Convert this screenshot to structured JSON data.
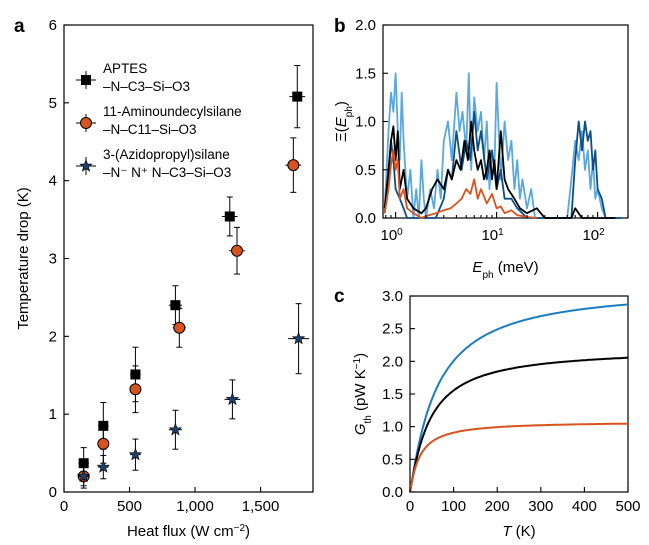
{
  "colors": {
    "black": "#000000",
    "orange": "#d9531e",
    "blue": "#1c7dc2",
    "navy": "#1f3f6b",
    "lightblue": "#5aa8e0",
    "darkblue": "#0b4f86"
  },
  "chart_data": [
    {
      "panel": "a",
      "type": "scatter",
      "xlabel": "Heat flux (W cm−2)",
      "xlabel_main": "Heat flux (W cm",
      "xlabel_sup": "−2",
      "xlabel_end": ")",
      "ylabel": "Temperature drop (K)",
      "xlim": [
        0,
        1900
      ],
      "ylim": [
        0,
        6
      ],
      "xticks": [
        0,
        500,
        1000,
        1500
      ],
      "xtick_labels": [
        "0",
        "500",
        "1,000",
        "1,500"
      ],
      "yticks": [
        0,
        1,
        2,
        3,
        4,
        5,
        6
      ],
      "ytick_labels": [
        "0",
        "1",
        "2",
        "3",
        "4",
        "5",
        "6"
      ],
      "legend_position": "top-left",
      "series": [
        {
          "name": "APTES –N–C3–Si–O3",
          "legend_line1": "APTES",
          "legend_line2": "–N–C3–Si–O3",
          "marker": "square",
          "color": "#000000",
          "x": [
            150,
            300,
            545,
            850,
            1265,
            1780
          ],
          "y": [
            0.37,
            0.85,
            1.51,
            2.4,
            3.54,
            5.08
          ],
          "yerr": [
            0.2,
            0.3,
            0.35,
            0.25,
            0.25,
            0.4
          ],
          "xerr": [
            40,
            40,
            40,
            50,
            60,
            60
          ]
        },
        {
          "name": "11-Aminoundecylsilane –N–C11–Si–O3",
          "legend_line1": "11-Aminoundecylsilane",
          "legend_line2": "–N–C11–Si–O3",
          "marker": "circle",
          "color": "#d9531e",
          "x": [
            150,
            300,
            545,
            880,
            1320,
            1750
          ],
          "y": [
            0.2,
            0.62,
            1.32,
            2.11,
            3.1,
            4.2
          ],
          "yerr": [
            0.15,
            0.25,
            0.3,
            0.25,
            0.3,
            0.35
          ],
          "xerr": [
            40,
            40,
            40,
            50,
            60,
            60
          ]
        },
        {
          "name": "3-(Azidopropyl)silane –N–N+N–C3–Si–O3",
          "legend_line1": "3-(Azidopropyl)silane",
          "legend_line2": "–N⁻ N⁺ N–C3–Si–O3",
          "marker": "star",
          "color": "#1f3f6b",
          "x": [
            150,
            300,
            545,
            850,
            1285,
            1790
          ],
          "y": [
            0.2,
            0.32,
            0.48,
            0.8,
            1.19,
            1.97
          ],
          "yerr": [
            0.12,
            0.15,
            0.2,
            0.25,
            0.25,
            0.45
          ],
          "xerr": [
            40,
            40,
            40,
            50,
            60,
            80
          ]
        }
      ]
    },
    {
      "panel": "b",
      "type": "line",
      "xscale": "log",
      "xlabel": "Eph (meV)",
      "ylabel": "Ξ(Eph)",
      "xlim": [
        0.75,
        200
      ],
      "ylim": [
        0,
        2.0
      ],
      "xtick_labels": [
        "10⁰",
        "10¹",
        "10²"
      ],
      "ytick_labels": [
        "0.0",
        "0.5",
        "1.0",
        "1.5",
        "2.0"
      ],
      "yticks": [
        0,
        0.5,
        1.0,
        1.5,
        2.0
      ],
      "series": [
        {
          "color": "#5aa8e0",
          "x": [
            0.78,
            0.85,
            0.9,
            0.95,
            1.0,
            1.05,
            1.1,
            1.15,
            1.2,
            1.3,
            1.4,
            1.5,
            1.6,
            1.7,
            1.8,
            1.9,
            2.0,
            2.2,
            2.4,
            2.6,
            2.8,
            3.0,
            3.3,
            3.6,
            4.0,
            4.3,
            4.6,
            5.0,
            5.3,
            5.6,
            6.0,
            6.5,
            7.0,
            7.5,
            8.0,
            8.5,
            9.0,
            9.5,
            10,
            11,
            12,
            13,
            14,
            15,
            16,
            17,
            18,
            20,
            22,
            24,
            26,
            30,
            40,
            50,
            55,
            60,
            65,
            70,
            75,
            80,
            85,
            90,
            95,
            100,
            110,
            120,
            130,
            150,
            170
          ],
          "y": [
            0.1,
            0.9,
            1.3,
            1.1,
            1.5,
            0.9,
            0.6,
            1.3,
            0.8,
            0.2,
            0.5,
            0.0,
            0.3,
            0.0,
            0.6,
            0.2,
            0.0,
            0.3,
            0.1,
            0.5,
            0.2,
            0.8,
            1.0,
            0.6,
            1.3,
            0.9,
            1.1,
            0.7,
            1.5,
            0.5,
            1.25,
            0.9,
            1.1,
            0.6,
            1.0,
            0.3,
            0.7,
            0.5,
            1.4,
            0.4,
            1.0,
            0.6,
            0.8,
            0.3,
            0.6,
            0.2,
            0.4,
            0.1,
            0.3,
            0.0,
            0.0,
            0.0,
            0.0,
            0.0,
            0.4,
            0.8,
            0.6,
            0.9,
            0.5,
            0.7,
            0.3,
            0.6,
            0.2,
            0.3,
            0.1,
            0.0,
            0.0,
            0.0,
            0.0
          ]
        },
        {
          "color": "#0b4f86",
          "x": [
            0.78,
            0.85,
            0.9,
            0.95,
            1.0,
            1.1,
            1.2,
            1.3,
            1.5,
            2.0,
            2.5,
            3.0,
            3.3,
            3.6,
            4.0,
            4.5,
            5.0,
            5.5,
            6.0,
            6.5,
            7.0,
            8.0,
            9.0,
            10,
            11,
            12,
            14,
            16,
            18,
            20,
            25,
            40,
            50,
            55,
            60,
            65,
            70,
            75,
            80,
            85,
            90,
            95,
            100,
            110,
            120,
            150,
            170
          ],
          "y": [
            0.05,
            0.4,
            0.8,
            0.6,
            0.3,
            0.2,
            0.1,
            0.0,
            0.0,
            0.0,
            0.0,
            0.2,
            0.5,
            0.4,
            0.9,
            0.5,
            0.8,
            0.6,
            1.1,
            0.7,
            0.9,
            0.4,
            0.7,
            0.3,
            0.5,
            0.2,
            0.2,
            0.1,
            0.05,
            0.0,
            0.0,
            0.0,
            0.0,
            0.0,
            0.6,
            1.0,
            0.7,
            1.0,
            0.8,
            0.9,
            0.5,
            0.7,
            0.3,
            0.2,
            0.0,
            0.0,
            0.0
          ]
        },
        {
          "color": "#000000",
          "x": [
            0.78,
            0.85,
            0.9,
            0.95,
            1.0,
            1.05,
            1.1,
            1.2,
            1.3,
            1.5,
            1.8,
            2.0,
            2.3,
            2.6,
            3.0,
            3.3,
            3.6,
            4.0,
            4.4,
            4.8,
            5.2,
            5.6,
            6.0,
            6.5,
            7.0,
            7.5,
            8.0,
            8.5,
            9.0,
            9.5,
            10,
            11,
            12,
            13,
            15,
            17,
            20,
            25,
            30,
            40,
            50,
            55,
            60,
            70,
            80,
            90,
            100,
            110,
            120,
            150
          ],
          "y": [
            0.1,
            0.5,
            0.8,
            0.95,
            0.6,
            0.9,
            0.3,
            0.5,
            0.2,
            0.1,
            0.05,
            0.1,
            0.3,
            0.4,
            0.3,
            0.5,
            0.4,
            0.6,
            0.5,
            0.8,
            0.6,
            1.0,
            0.7,
            0.5,
            0.6,
            0.4,
            0.5,
            0.7,
            0.4,
            0.6,
            0.3,
            0.9,
            0.4,
            0.3,
            0.2,
            0.1,
            0.05,
            0.1,
            0.0,
            0.0,
            0.0,
            0.0,
            0.1,
            0.0,
            0.0,
            0.0,
            0.0,
            0.0,
            0.0,
            0.0
          ]
        },
        {
          "color": "#d9531e",
          "x": [
            0.78,
            0.85,
            0.9,
            0.95,
            1.0,
            1.05,
            1.1,
            1.2,
            1.3,
            1.5,
            1.8,
            2.0,
            2.5,
            3.0,
            3.5,
            4.0,
            4.5,
            5.0,
            5.5,
            6.0,
            6.5,
            7.0,
            8.0,
            9.0,
            10,
            11,
            12,
            14,
            16,
            18,
            20,
            25
          ],
          "y": [
            0.05,
            0.3,
            0.55,
            0.7,
            0.5,
            0.6,
            0.2,
            0.3,
            0.1,
            0.05,
            0.0,
            0.02,
            0.05,
            0.08,
            0.1,
            0.15,
            0.2,
            0.3,
            0.25,
            0.4,
            0.2,
            0.3,
            0.15,
            0.25,
            0.1,
            0.12,
            0.05,
            0.08,
            0.03,
            0.02,
            0.01,
            0.0
          ]
        }
      ]
    },
    {
      "panel": "c",
      "type": "line",
      "xlabel": "T (K)",
      "xlabel_var": "T",
      "xlabel_unit": " (K)",
      "ylabel": "Gth (pW K−1)",
      "ylabel_var": "G",
      "ylabel_sub": "th",
      "ylabel_unit": " (pW K",
      "ylabel_sup": "−1",
      "ylabel_end": ")",
      "xlim": [
        0,
        500
      ],
      "ylim": [
        0,
        3.0
      ],
      "xticks": [
        0,
        100,
        200,
        300,
        400,
        500
      ],
      "xtick_labels": [
        "0",
        "100",
        "200",
        "300",
        "400",
        "500"
      ],
      "yticks": [
        0,
        0.5,
        1.0,
        1.5,
        2.0,
        2.5,
        3.0
      ],
      "ytick_labels": [
        "0.0",
        "0.5",
        "1.0",
        "1.5",
        "2.0",
        "2.5",
        "3.0"
      ],
      "series": [
        {
          "color": "#1c7dc2",
          "asymptote": 3.15,
          "T0": 60
        },
        {
          "color": "#000000",
          "asymptote": 2.2,
          "T0": 45
        },
        {
          "color": "#d9531e",
          "asymptote": 1.08,
          "T0": 22
        }
      ]
    }
  ],
  "panel_labels": {
    "a": "a",
    "b": "b",
    "c": "c"
  }
}
